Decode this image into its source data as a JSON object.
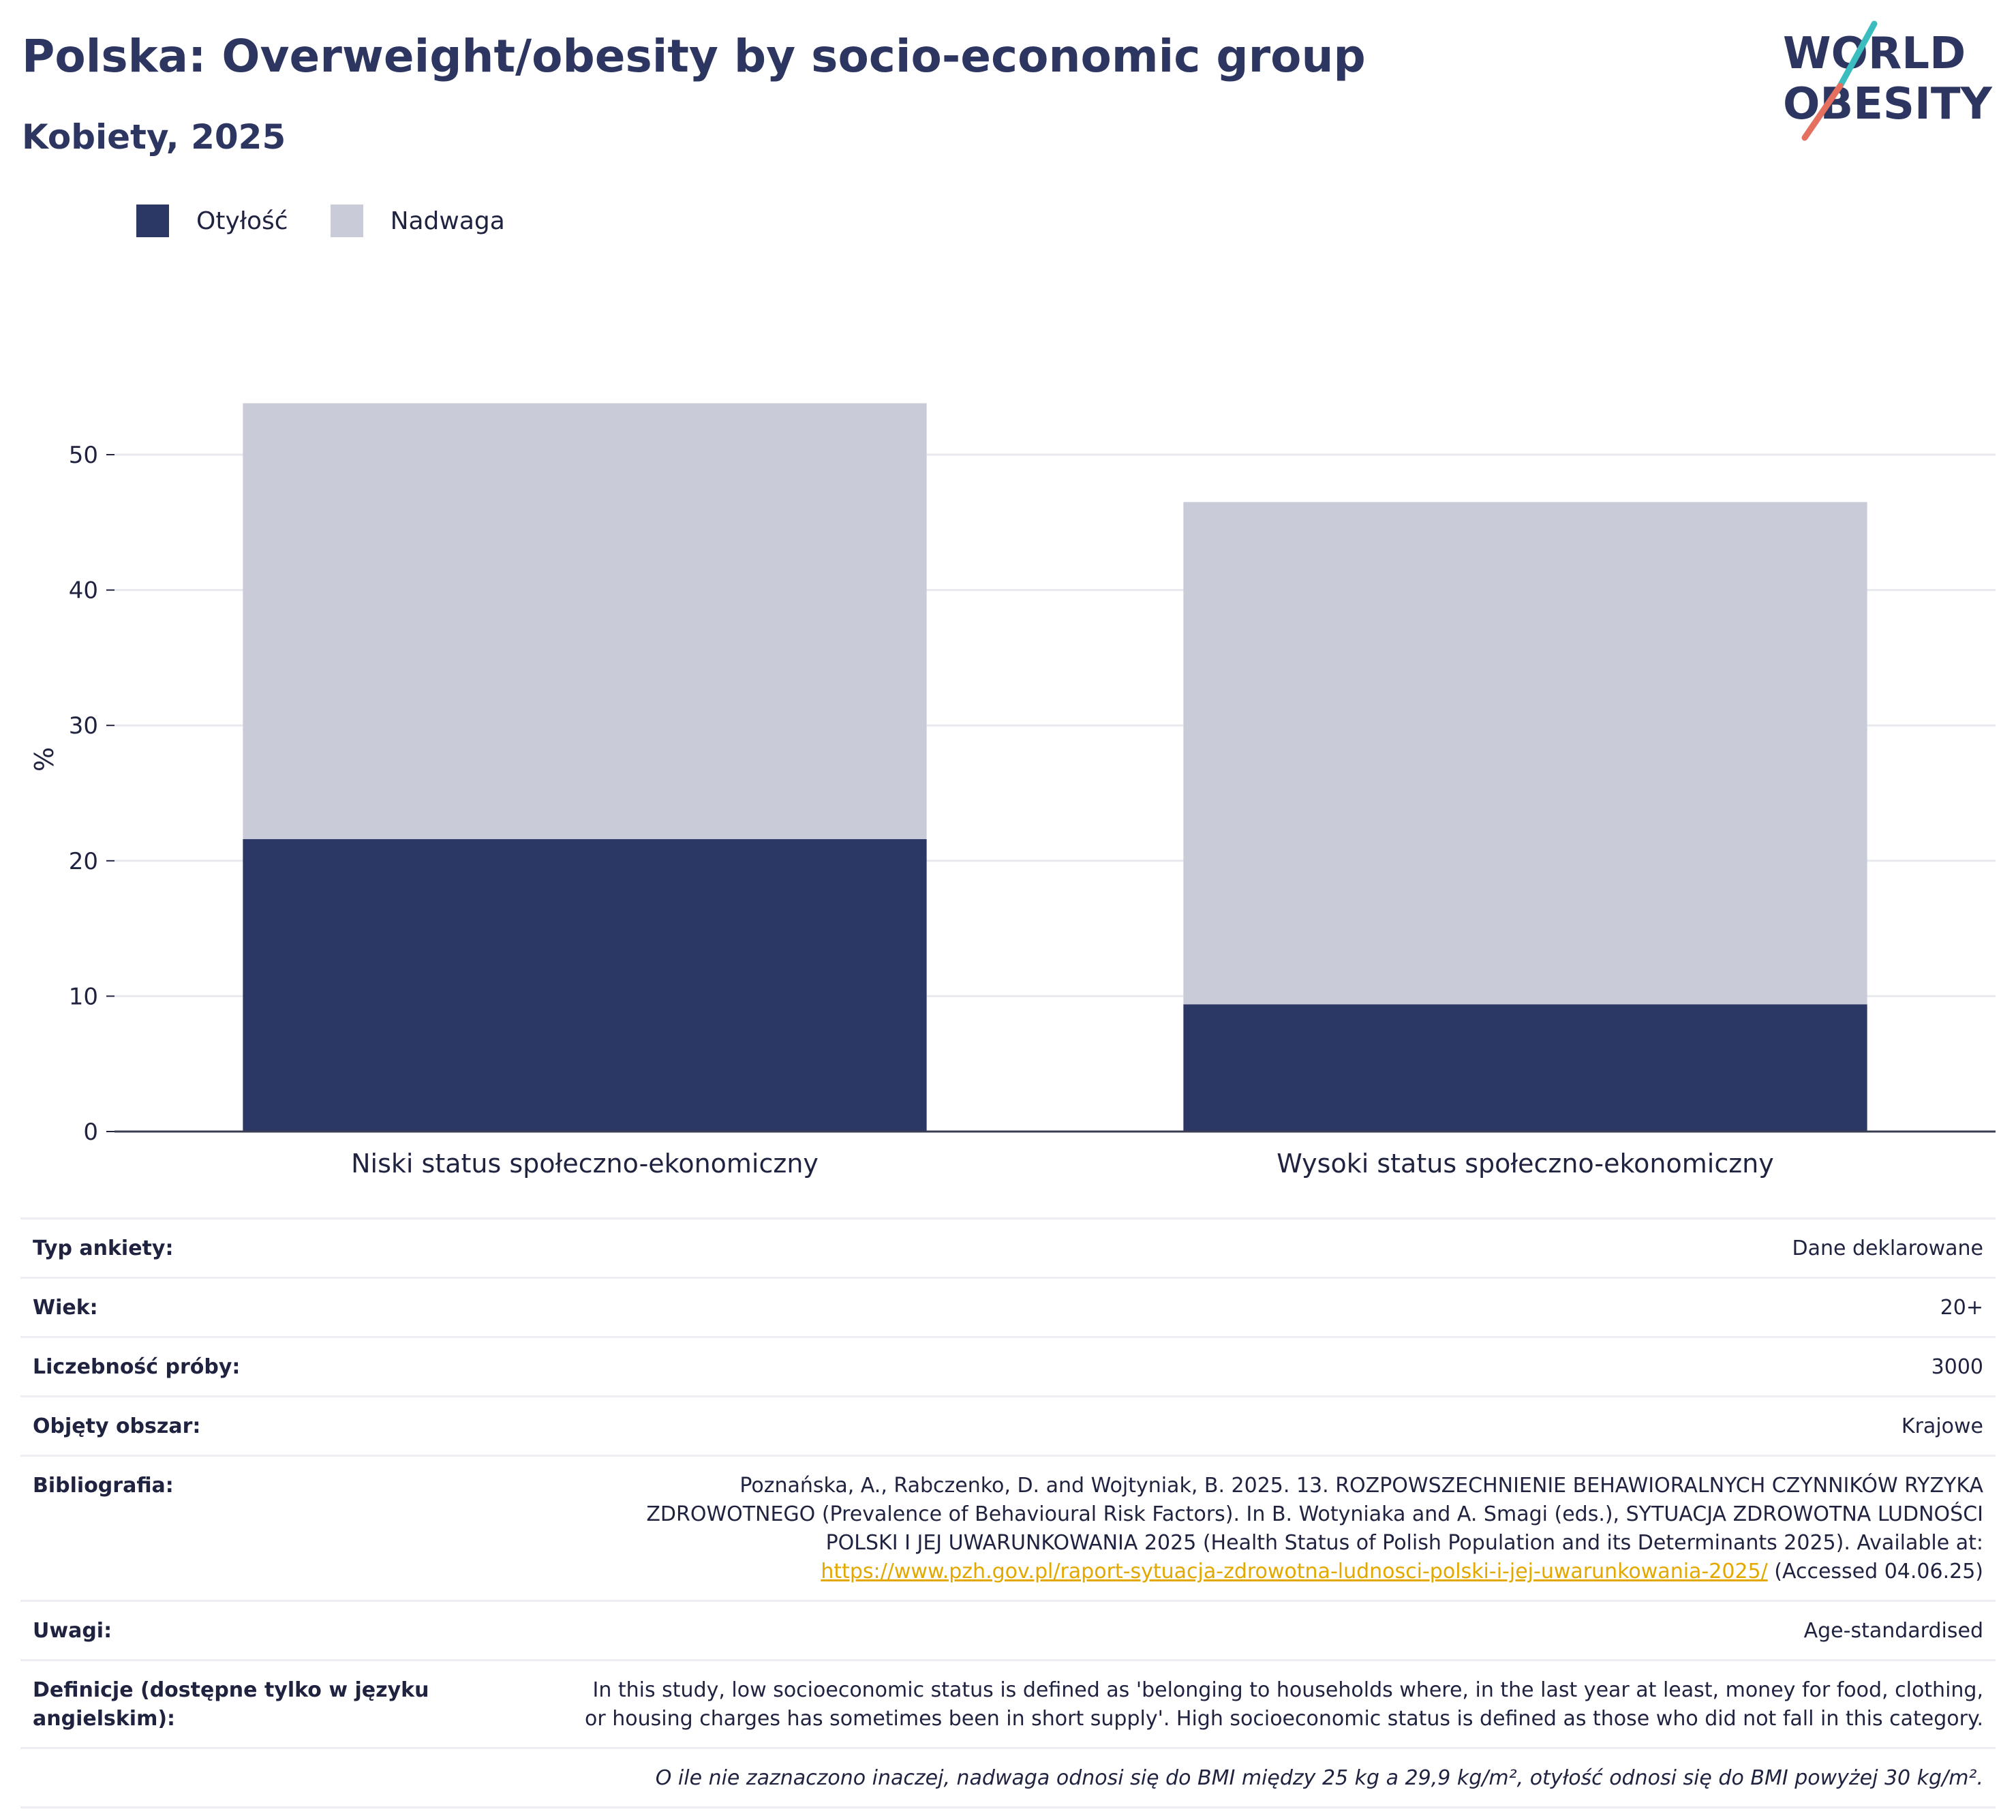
{
  "title": "Polska: Overweight/obesity by socio-economic group",
  "subtitle": "Kobiety, 2025",
  "logo": {
    "line1": "WORLD",
    "line2": "OBESITY"
  },
  "colors": {
    "obesity": "#2b3764",
    "overweight": "#c9ccd8",
    "title": "#2d3561",
    "logo_teal": "#3bbdc0",
    "logo_coral": "#e5705f",
    "link": "#e2a800"
  },
  "legend": {
    "items": [
      {
        "label": "Otyłość",
        "color": "#2b3764"
      },
      {
        "label": "Nadwaga",
        "color": "#c9ccd8"
      }
    ]
  },
  "chart_data": {
    "type": "bar",
    "stacked": true,
    "categories": [
      "Niski status społeczno-ekonomiczny",
      "Wysoki status społeczno-ekonomiczny"
    ],
    "series": [
      {
        "name": "Otyłość",
        "values": [
          21.6,
          9.4
        ]
      },
      {
        "name": "Nadwaga",
        "values": [
          32.2,
          37.1
        ]
      }
    ],
    "ylabel": "%",
    "ylim": [
      0,
      57
    ],
    "yticks": [
      0,
      10,
      20,
      30,
      40,
      50
    ],
    "grid": true,
    "legend_position": "top-left"
  },
  "info": {
    "rows": [
      {
        "label": "Typ ankiety:",
        "value": "Dane deklarowane"
      },
      {
        "label": "Wiek:",
        "value": "20+"
      },
      {
        "label": "Liczebność próby:",
        "value": "3000"
      },
      {
        "label": "Objęty obszar:",
        "value": "Krajowe"
      }
    ],
    "bibliography": {
      "label": "Bibliografia:",
      "line1": "Poznańska, A., Rabczenko, D. and Wojtyniak, B. 2025. 13. ROZPOWSZECHNIENIE BEHAWIORALNYCH CZYNNIKÓW RYZYKA",
      "line2": "ZDROWOTNEGO (Prevalence of Behavioural Risk Factors). In B. Wotyniaka and A. Smagi (eds.), SYTUACJA ZDROWOTNA LUDNOŚCI",
      "line3": "POLSKI I JEJ UWARUNKOWANIA 2025 (Health Status of Polish Population and its Determinants 2025). Available at:",
      "link": "https://www.pzh.gov.pl/raport-sytuacja-zdrowotna-ludnosci-polski-i-jej-uwarunkowania-2025/",
      "accessed": " (Accessed 04.06.25)"
    },
    "notes": {
      "label": "Uwagi:",
      "value": "Age-standardised"
    },
    "definitions": {
      "label_line1": "Definicje (dostępne tylko w języku",
      "label_line2": "angielskim):",
      "line1": "In this study, low socioeconomic status is defined as 'belonging to households where, in the last year at least, money for food, clothing,",
      "line2": "or housing charges has sometimes been in short supply'. High socioeconomic status is defined as those who did not fall in this category."
    },
    "footnote": "O ile nie zaznaczono inaczej, nadwaga odnosi się do BMI między 25 kg a 29,9 kg/m², otyłość odnosi się do BMI powyżej 30 kg/m²."
  }
}
